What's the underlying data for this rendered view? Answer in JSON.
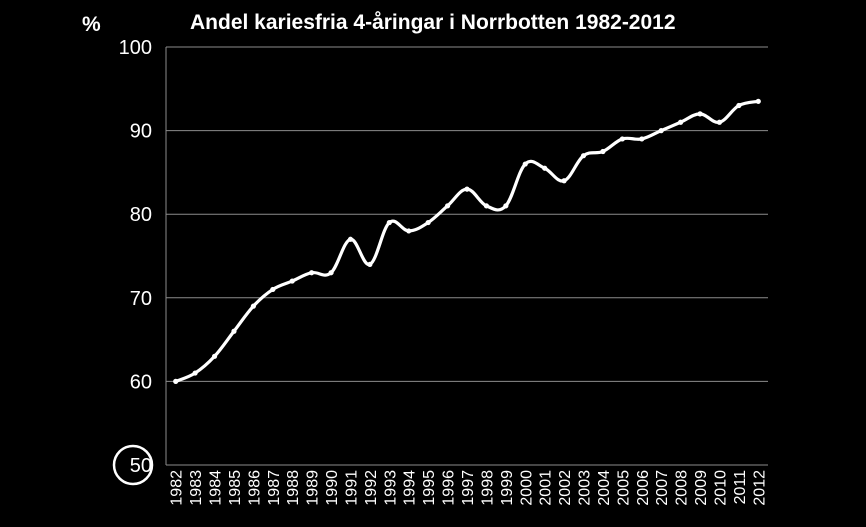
{
  "chart_data": {
    "type": "line",
    "title": "Andel kariesfria 4-åringar i Norrbotten 1982-2012",
    "ylabel": "%",
    "xlabel": "",
    "ylim": [
      50,
      100
    ],
    "yticks": [
      "50",
      "60",
      "70",
      "80",
      "90",
      "100"
    ],
    "grid": true,
    "legend": "none",
    "highlighted_tick": "50",
    "line_color": "#ffffff",
    "background_color": "#000000",
    "categories": [
      "1982",
      "1983",
      "1984",
      "1985",
      "1986",
      "1987",
      "1988",
      "1989",
      "1990",
      "1991",
      "1992",
      "1993",
      "1994",
      "1995",
      "1996",
      "1997",
      "1998",
      "1999",
      "2000",
      "2001",
      "2002",
      "2003",
      "2004",
      "2005",
      "2006",
      "2007",
      "2008",
      "2009",
      "2010",
      "2011",
      "2012"
    ],
    "series": [
      {
        "values": [
          60,
          61,
          63,
          66,
          69,
          71,
          72,
          73,
          73,
          77,
          74,
          79,
          78,
          79,
          81,
          83,
          81,
          81,
          86,
          85.5,
          84,
          87,
          87.5,
          89,
          89,
          90,
          91,
          92,
          91,
          93,
          93.5
        ]
      }
    ]
  }
}
